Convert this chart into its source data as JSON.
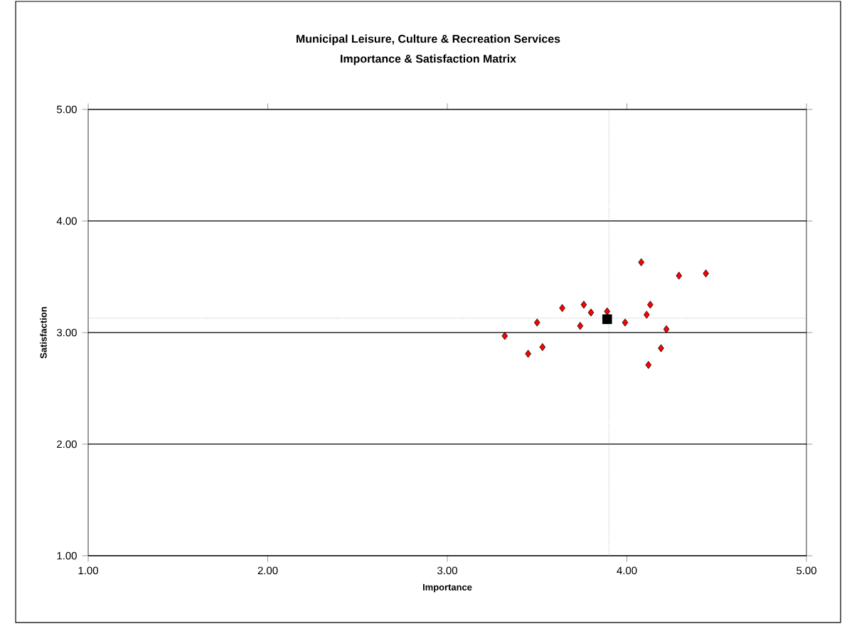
{
  "chart_data": {
    "type": "scatter",
    "title": "Municipal Leisure, Culture & Recreation Services",
    "subtitle": "Importance & Satisfaction Matrix",
    "xlabel": "Importance",
    "ylabel": "Satisfaction",
    "xlim": [
      1,
      5
    ],
    "ylim": [
      1,
      5
    ],
    "xticks": [
      {
        "value": 1,
        "label": "1.00"
      },
      {
        "value": 2,
        "label": "2.00"
      },
      {
        "value": 3,
        "label": "3.00"
      },
      {
        "value": 4,
        "label": "4.00"
      },
      {
        "value": 5,
        "label": "5.00"
      }
    ],
    "yticks": [
      {
        "value": 1,
        "label": "1.00"
      },
      {
        "value": 2,
        "label": "2.00"
      },
      {
        "value": 3,
        "label": "3.00"
      },
      {
        "value": 4,
        "label": "4.00"
      },
      {
        "value": 5,
        "label": "5.00"
      }
    ],
    "grid": "y",
    "series": [
      {
        "color": "#ff0000",
        "marker": "diamond",
        "x": [
          3.32,
          3.45,
          3.53,
          3.5,
          3.64,
          3.74,
          3.76,
          3.8,
          3.89,
          3.99,
          4.08,
          4.11,
          4.13,
          4.12,
          4.19,
          4.22,
          4.29,
          4.44
        ],
        "values": [
          2.97,
          2.81,
          2.87,
          3.09,
          3.22,
          3.06,
          3.25,
          3.18,
          3.19,
          3.09,
          3.63,
          3.16,
          3.25,
          2.71,
          2.86,
          3.03,
          3.51,
          3.53
        ]
      },
      {
        "color": "#000000",
        "marker": "square",
        "x": [
          3.89
        ],
        "values": [
          3.12
        ]
      }
    ],
    "ref_lines": [
      {
        "axis": "x",
        "value": 3.9,
        "color": "#808080",
        "line_style": "dotted"
      },
      {
        "axis": "y",
        "value": 3.13,
        "color": "#808080",
        "line_style": "dotted"
      }
    ]
  }
}
